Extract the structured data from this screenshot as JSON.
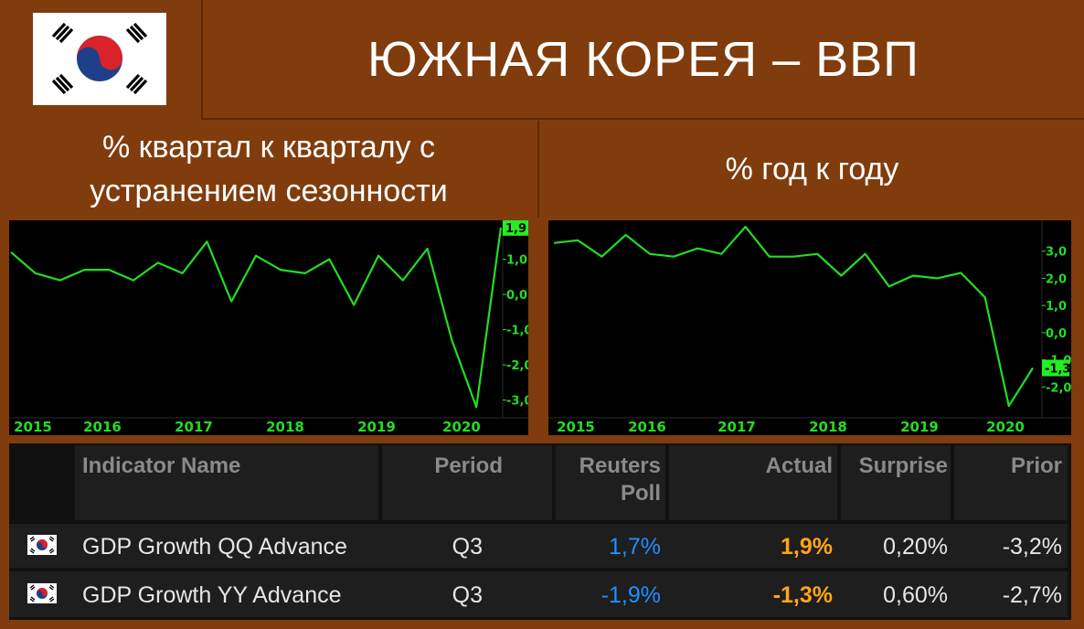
{
  "title": "ЮЖНАЯ КОРЕЯ – ВВП",
  "subtitles": {
    "left": "% квартал к кварталу с устранением сезонности",
    "right": "% год к году"
  },
  "colors": {
    "background": "#803c0c",
    "line": "#22dd22",
    "forecast": "#1e90ff",
    "actual": "#ffa41b"
  },
  "chart_data": [
    {
      "type": "line",
      "title": "% квартал к кварталу с устранением сезонности",
      "x_labels": [
        "2015",
        "2016",
        "2017",
        "2018",
        "2019",
        "2020"
      ],
      "series": [
        {
          "values": [
            1.2,
            0.6,
            0.4,
            0.7,
            0.7,
            0.4,
            0.9,
            0.6,
            1.5,
            -0.2,
            1.1,
            0.7,
            0.6,
            1.0,
            -0.3,
            1.1,
            0.4,
            1.3,
            -1.3,
            -3.2,
            1.9
          ]
        }
      ],
      "y_ticks": [
        "1,9",
        "1,0",
        "0,0",
        "-1,0",
        "-2,0",
        "-3,0"
      ],
      "last_value_label": "1,9",
      "ylim": [
        -3.4,
        2.0
      ]
    },
    {
      "type": "line",
      "title": "% год к году",
      "x_labels": [
        "2015",
        "2016",
        "2017",
        "2018",
        "2019",
        "2020"
      ],
      "series": [
        {
          "values": [
            3.3,
            3.4,
            2.8,
            3.6,
            2.9,
            2.8,
            3.1,
            2.9,
            3.9,
            2.8,
            2.8,
            2.9,
            2.1,
            2.9,
            1.7,
            2.1,
            2.0,
            2.2,
            1.3,
            -2.7,
            -1.3
          ]
        }
      ],
      "y_ticks": [
        "3,0",
        "2,0",
        "1,0",
        "0,0",
        "-1,0",
        "-2,0"
      ],
      "last_value_label": "-1,3",
      "ylim": [
        -3.0,
        4.0
      ]
    }
  ],
  "table": {
    "headers": [
      "Indicator Name",
      "Period",
      "Reuters Poll",
      "Actual",
      "Surprise",
      "Prior"
    ],
    "rows": [
      {
        "name": "GDP Growth QQ Advance",
        "period": "Q3",
        "poll": "1,7%",
        "actual": "1,9%",
        "surprise": "0,20%",
        "prior": "-3,2%"
      },
      {
        "name": "GDP Growth YY Advance",
        "period": "Q3",
        "poll": "-1,9%",
        "actual": "-1,3%",
        "surprise": "0,60%",
        "prior": "-2,7%"
      }
    ]
  }
}
